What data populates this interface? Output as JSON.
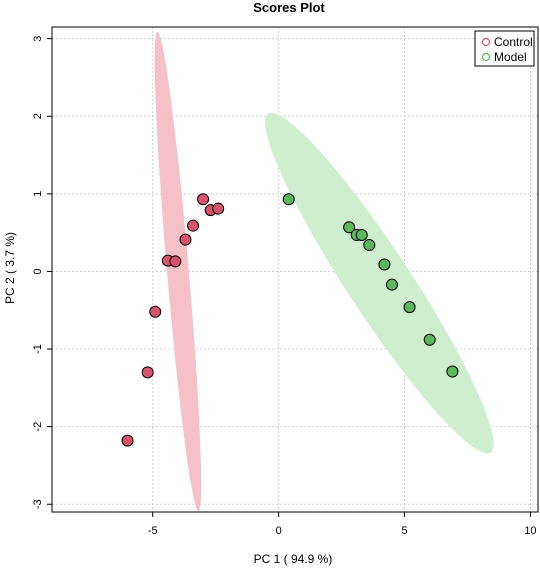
{
  "chart_data": {
    "type": "scatter",
    "title": "Scores Plot",
    "xlabel": "PC 1 ( 94.9 %)",
    "ylabel": "PC 2 ( 3.7 %)",
    "xlim": [
      -9,
      10.3
    ],
    "ylim": [
      -3.1,
      3.15
    ],
    "xticks": [
      -5,
      0,
      5,
      10
    ],
    "yticks": [
      -3,
      -2,
      -1,
      0,
      1,
      2,
      3
    ],
    "grid": true,
    "legend_position": "top-right",
    "series": [
      {
        "name": "Control",
        "color": "#d9536e",
        "fill": "#f6c0c9",
        "points": [
          {
            "x": -6.0,
            "y": -2.18
          },
          {
            "x": -5.2,
            "y": -1.3
          },
          {
            "x": -4.9,
            "y": -0.52
          },
          {
            "x": -4.4,
            "y": 0.14
          },
          {
            "x": -4.1,
            "y": 0.13
          },
          {
            "x": -3.7,
            "y": 0.41
          },
          {
            "x": -3.4,
            "y": 0.59
          },
          {
            "x": -3.0,
            "y": 0.93
          },
          {
            "x": -2.7,
            "y": 0.79
          },
          {
            "x": -2.4,
            "y": 0.81
          }
        ],
        "ellipse": {
          "cx": -4.0,
          "cy": 0.0,
          "angle_deg": -75,
          "semi_major": 3.2,
          "semi_minor": 0.42
        }
      },
      {
        "name": "Model",
        "color": "#5cb85c",
        "fill": "#cfeecf",
        "points": [
          {
            "x": 0.4,
            "y": 0.93
          },
          {
            "x": 2.8,
            "y": 0.57
          },
          {
            "x": 3.1,
            "y": 0.47
          },
          {
            "x": 3.3,
            "y": 0.47
          },
          {
            "x": 3.6,
            "y": 0.34
          },
          {
            "x": 4.2,
            "y": 0.09
          },
          {
            "x": 4.5,
            "y": -0.17
          },
          {
            "x": 5.2,
            "y": -0.46
          },
          {
            "x": 6.0,
            "y": -0.88
          },
          {
            "x": 6.9,
            "y": -1.29
          }
        ],
        "ellipse": {
          "cx": 4.0,
          "cy": -0.15,
          "angle_deg": -25,
          "semi_major": 5.0,
          "semi_minor": 0.66
        }
      }
    ]
  }
}
